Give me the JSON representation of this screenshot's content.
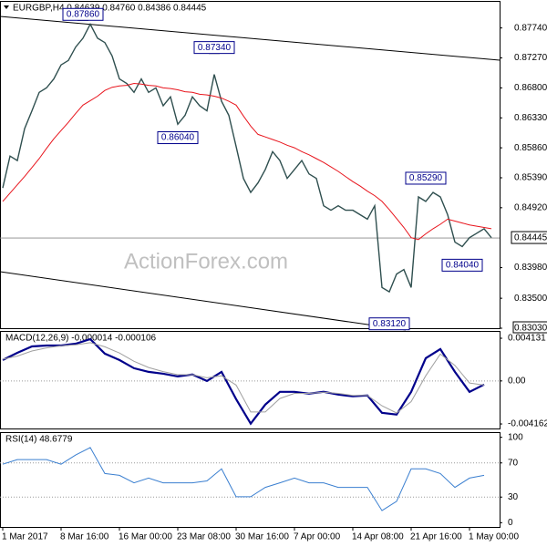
{
  "chart_data": [
    {
      "type": "line",
      "title": "EURGBP,H4 0.84639 0.84760 0.84386 0.84445",
      "watermark": "ActionForex.com",
      "categories": [
        "1 Mar 2017",
        null,
        null,
        null,
        null,
        null,
        null,
        null,
        "8 Mar 16:00",
        null,
        null,
        null,
        null,
        null,
        null,
        null,
        "16 Mar 00:00",
        null,
        null,
        null,
        null,
        null,
        null,
        null,
        "23 Mar 08:00",
        null,
        null,
        null,
        null,
        null,
        null,
        null,
        "30 Mar 16:00",
        null,
        null,
        null,
        null,
        null,
        null,
        null,
        "7 Apr 00:00",
        null,
        null,
        null,
        null,
        null,
        null,
        null,
        "14 Apr 08:00",
        null,
        null,
        null,
        null,
        null,
        null,
        null,
        "21 Apr 16:00",
        null,
        null,
        null,
        null,
        null,
        null,
        null,
        "1 May 00:00",
        null,
        null,
        null
      ],
      "series": [
        {
          "color": "#2f4f4f",
          "values": [
            0.8523,
            0.8573,
            0.8566,
            0.8616,
            0.8644,
            0.8673,
            0.868,
            0.8694,
            0.8716,
            0.8723,
            0.8744,
            0.8758,
            0.878,
            0.8758,
            0.8751,
            0.873,
            0.8694,
            0.8687,
            0.8673,
            0.8694,
            0.8673,
            0.868,
            0.8652,
            0.8666,
            0.8623,
            0.8637,
            0.8666,
            0.8652,
            0.8644,
            0.8701,
            0.8659,
            0.8637,
            0.8588,
            0.8538,
            0.8516,
            0.8531,
            0.8552,
            0.858,
            0.8566,
            0.8538,
            0.8552,
            0.8566,
            0.8545,
            0.8538,
            0.8495,
            0.8488,
            0.8495,
            0.8488,
            0.8488,
            0.8481,
            0.8474,
            0.8495,
            0.8367,
            0.836,
            0.8388,
            0.8395,
            0.8367,
            0.8509,
            0.8502,
            0.8516,
            0.8509,
            0.8481,
            0.8438,
            0.8431,
            0.8445,
            0.8452,
            0.8459,
            0.8445
          ]
        },
        {
          "color": "#e8141c",
          "values": [
            0.8502,
            0.8515,
            0.8528,
            0.8541,
            0.8555,
            0.8569,
            0.8585,
            0.86,
            0.8613,
            0.8626,
            0.864,
            0.8653,
            0.866,
            0.8667,
            0.8676,
            0.8681,
            0.8683,
            0.8684,
            0.8687,
            0.8686,
            0.8684,
            0.8683,
            0.868,
            0.8679,
            0.8677,
            0.8674,
            0.8673,
            0.867,
            0.8669,
            0.8667,
            0.8664,
            0.8659,
            0.8653,
            0.8636,
            0.862,
            0.8607,
            0.8603,
            0.8599,
            0.8595,
            0.859,
            0.8586,
            0.858,
            0.8575,
            0.8569,
            0.8563,
            0.8556,
            0.8549,
            0.8541,
            0.8533,
            0.8526,
            0.8518,
            0.8511,
            0.8502,
            0.8489,
            0.8475,
            0.8461,
            0.8445,
            0.8442,
            0.8451,
            0.8459,
            0.8466,
            0.8474,
            0.8471,
            0.8468,
            0.8465,
            0.8463,
            0.8461,
            0.8459
          ]
        }
      ],
      "ylim": [
        0.8303,
        0.8815
      ],
      "yticks": [
        {
          "value": 0.8774,
          "label": "0.87740"
        },
        {
          "value": 0.8727,
          "label": "0.87270"
        },
        {
          "value": 0.868,
          "label": "0.86800"
        },
        {
          "value": 0.8633,
          "label": "0.86330"
        },
        {
          "value": 0.8586,
          "label": "0.85860"
        },
        {
          "value": 0.8539,
          "label": "0.85390"
        },
        {
          "value": 0.8492,
          "label": "0.84920"
        },
        {
          "value": 0.8398,
          "label": "0.83980"
        },
        {
          "value": 0.835,
          "label": "0.83500"
        },
        {
          "value": 0.8303,
          "label": "0.83030"
        }
      ],
      "last_price": 0.84445,
      "annotations": [
        {
          "label": "0.87860",
          "value": 0.8786,
          "at": 11
        },
        {
          "label": "0.87340",
          "value": 0.8734,
          "at": 29
        },
        {
          "label": "0.86040",
          "value": 0.8604,
          "at": 24
        },
        {
          "label": "0.85290",
          "value": 0.8529,
          "at": 58
        },
        {
          "label": "0.84040",
          "value": 0.8404,
          "at": 63
        },
        {
          "label": "0.83120",
          "value": 0.8312,
          "at": 53
        }
      ]
    },
    {
      "type": "line",
      "title": "MACD(12,26,9) -0.000014 -0.000106",
      "x": [
        0,
        2,
        4,
        6,
        8,
        10,
        12,
        14,
        16,
        18,
        20,
        22,
        24,
        26,
        28,
        30,
        32,
        34,
        36,
        38,
        40,
        42,
        44,
        46,
        48,
        50,
        52,
        54,
        56,
        58,
        60,
        62,
        64,
        66
      ],
      "xlim": [
        -0.375,
        68.125
      ],
      "series": [
        {
          "color": "#00008b",
          "values": [
            0.00202,
            0.00272,
            0.00334,
            0.00343,
            0.00343,
            0.0036,
            0.00404,
            0.00264,
            0.00202,
            0.00123,
            0.00088,
            0.0007,
            0.00044,
            0.00062,
            0.0,
            0.00088,
            -0.00176,
            -0.00413,
            -0.00229,
            -0.00105,
            -0.00105,
            -0.00123,
            -0.00105,
            -0.00132,
            -0.00149,
            -0.00141,
            -0.00308,
            -0.00325,
            -0.00105,
            0.0022,
            0.00308,
            0.00088,
            -0.00105,
            -0.00035
          ]
        },
        {
          "color": "#a0a0a0",
          "values": [
            0.0021,
            0.0024,
            0.0029,
            0.0032,
            0.0034,
            0.0035,
            0.0037,
            0.0033,
            0.0027,
            0.0019,
            0.0013,
            0.0009,
            0.0006,
            0.0006,
            0.0003,
            0.0005,
            -0.0004,
            -0.003,
            -0.003,
            -0.0017,
            -0.0012,
            -0.0012,
            -0.0011,
            -0.0012,
            -0.0014,
            -0.0014,
            -0.0024,
            -0.0031,
            -0.002,
            0.0005,
            0.0026,
            0.0015,
            -0.0002,
            -0.0004
          ]
        }
      ],
      "ylim": [
        -0.0046,
        0.00475
      ],
      "yticks": [
        0.004131,
        {
          "value": 0,
          "label": "0.00"
        },
        -0.004162
      ],
      "grid": true
    },
    {
      "type": "line",
      "title": "RSI(14) 48.6779",
      "x": [
        0,
        2,
        4,
        6,
        8,
        10,
        12,
        14,
        16,
        18,
        20,
        22,
        24,
        26,
        28,
        30,
        32,
        34,
        36,
        38,
        40,
        42,
        44,
        46,
        48,
        50,
        52,
        54,
        56,
        58,
        60,
        62,
        64,
        66
      ],
      "xlim": [
        -0.375,
        68.125
      ],
      "series": [
        {
          "color": "#3a7fd0",
          "values": [
            68.5,
            73.9,
            73.9,
            73.9,
            68.5,
            79.3,
            88.0,
            57.6,
            55.4,
            46.7,
            52.2,
            46.7,
            46.7,
            46.7,
            48.9,
            63.0,
            30.4,
            30.4,
            41.3,
            46.7,
            52.2,
            46.7,
            46.7,
            41.3,
            41.3,
            41.3,
            14.1,
            25.0,
            63.0,
            63.0,
            57.6,
            41.3,
            52.2,
            55.4
          ]
        }
      ],
      "ylim": [
        -5,
        105
      ],
      "yticks": [
        100,
        70,
        30,
        0
      ],
      "grid": true
    }
  ]
}
